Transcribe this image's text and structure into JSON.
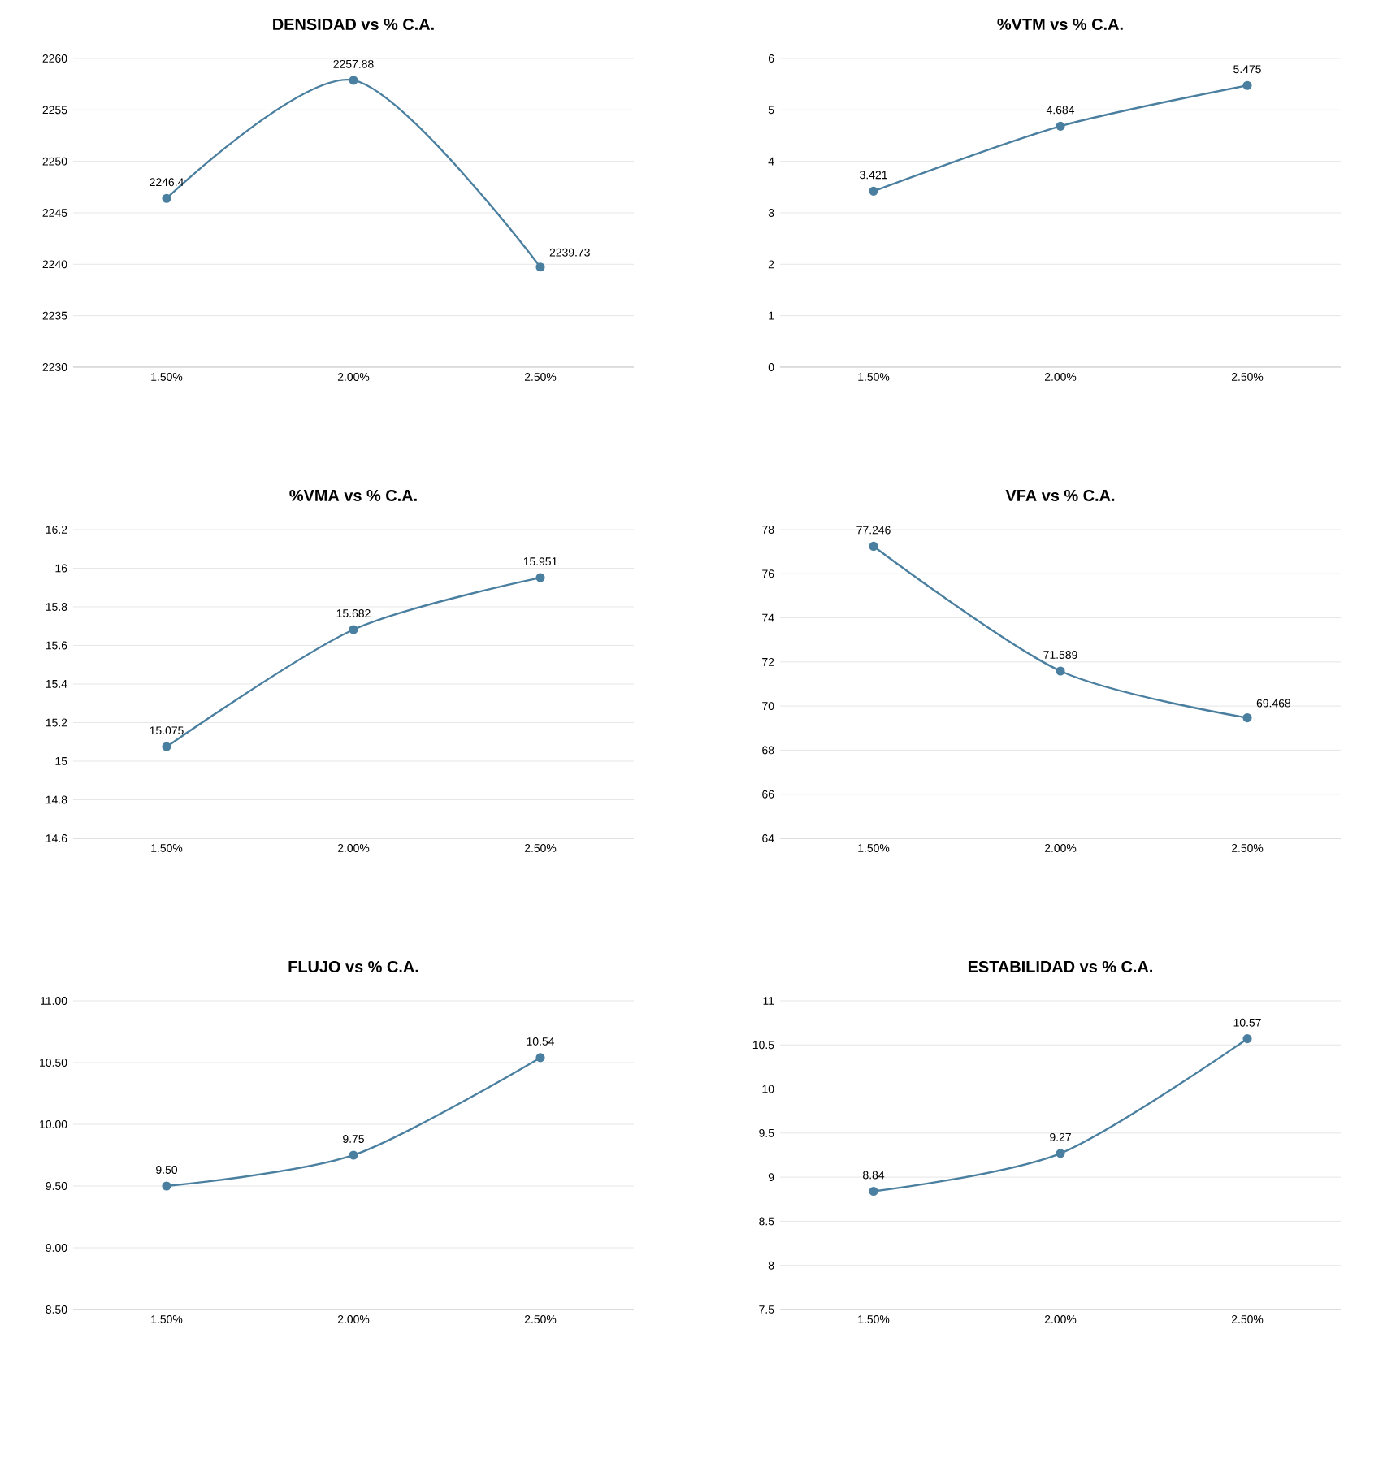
{
  "chart_data": [
    {
      "type": "line",
      "title": "DENSIDAD vs % C.A.",
      "categories": [
        "1.50%",
        "2.00%",
        "2.50%"
      ],
      "values": [
        2246.4,
        2257.88,
        2239.73
      ],
      "color": "#4a7fa0",
      "ylim": [
        2230,
        2260
      ],
      "yticks": [
        2230,
        2235,
        2240,
        2245,
        2250,
        2255,
        2260
      ],
      "grid": "y",
      "marker": "circle",
      "line_style": "solid",
      "data_labels": true
    },
    {
      "type": "line",
      "title": "%VTM vs % C.A.",
      "categories": [
        "1.50%",
        "2.00%",
        "2.50%"
      ],
      "values": [
        3.421,
        4.684,
        5.475
      ],
      "color": "#4a7fa0",
      "ylim": [
        0,
        6
      ],
      "yticks": [
        0,
        1,
        2,
        3,
        4,
        5,
        6
      ],
      "grid": "y",
      "marker": "circle",
      "line_style": "solid",
      "data_labels": true
    },
    {
      "type": "line",
      "title": "%VMA vs % C.A.",
      "categories": [
        "1.50%",
        "2.00%",
        "2.50%"
      ],
      "values": [
        15.075,
        15.682,
        15.951
      ],
      "color": "#4a7fa0",
      "ylim": [
        14.6,
        16.2
      ],
      "yticks": [
        14.6,
        14.8,
        15,
        15.2,
        15.4,
        15.6,
        15.8,
        16,
        16.2
      ],
      "grid": "y",
      "marker": "circle",
      "line_style": "solid",
      "data_labels": true
    },
    {
      "type": "line",
      "title": "VFA vs % C.A.",
      "categories": [
        "1.50%",
        "2.00%",
        "2.50%"
      ],
      "values": [
        77.246,
        71.589,
        69.468
      ],
      "color": "#4a7fa0",
      "ylim": [
        64,
        78
      ],
      "yticks": [
        64,
        66,
        68,
        70,
        72,
        74,
        76,
        78
      ],
      "grid": "y",
      "marker": "circle",
      "line_style": "solid",
      "data_labels": true
    },
    {
      "type": "line",
      "title": "FLUJO vs % C.A.",
      "categories": [
        "1.50%",
        "2.00%",
        "2.50%"
      ],
      "values": [
        9.5,
        9.75,
        10.54
      ],
      "value_labels": [
        "9.50",
        "9.75",
        "10.54"
      ],
      "color": "#4a7fa0",
      "ylim": [
        8.5,
        11
      ],
      "yticks": [
        {
          "value": 8.5,
          "label": "8.50"
        },
        {
          "value": 9,
          "label": "9.00"
        },
        {
          "value": 9.5,
          "label": "9.50"
        },
        {
          "value": 10,
          "label": "10.00"
        },
        {
          "value": 10.5,
          "label": "10.50"
        },
        {
          "value": 11,
          "label": "11.00"
        }
      ],
      "grid": "y",
      "marker": "circle",
      "line_style": "solid"
    },
    {
      "type": "line",
      "title": "ESTABILIDAD vs % C.A.",
      "categories": [
        "1.50%",
        "2.00%",
        "2.50%"
      ],
      "values": [
        8.84,
        9.27,
        10.57
      ],
      "color": "#4a7fa0",
      "ylim": [
        7.5,
        11
      ],
      "yticks": [
        7.5,
        8,
        8.5,
        9,
        9.5,
        10,
        10.5,
        11
      ],
      "grid": "y",
      "marker": "circle",
      "line_style": "solid",
      "data_labels": true
    }
  ]
}
